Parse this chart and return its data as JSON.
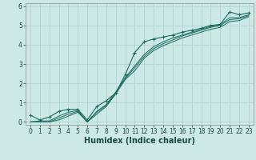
{
  "xlabel": "Humidex (Indice chaleur)",
  "ylabel": "",
  "xlim": [
    -0.5,
    23.5
  ],
  "ylim": [
    -0.15,
    6.15
  ],
  "xticks": [
    0,
    1,
    2,
    3,
    4,
    5,
    6,
    7,
    8,
    9,
    10,
    11,
    12,
    13,
    14,
    15,
    16,
    17,
    18,
    19,
    20,
    21,
    22,
    23
  ],
  "yticks": [
    0,
    1,
    2,
    3,
    4,
    5,
    6
  ],
  "bg_color": "#cce9e5",
  "grid_color": "#aacfcb",
  "line_color": "#1a6b5e",
  "line1_x": [
    0,
    1,
    2,
    3,
    4,
    5,
    6,
    7,
    8,
    9,
    10,
    11,
    12,
    13,
    14,
    15,
    16,
    17,
    18,
    19,
    20,
    21,
    22,
    23
  ],
  "line1_y": [
    0.35,
    0.1,
    0.25,
    0.55,
    0.65,
    0.65,
    0.1,
    0.8,
    1.1,
    1.5,
    2.45,
    3.6,
    4.15,
    4.3,
    4.4,
    4.5,
    4.65,
    4.75,
    4.85,
    5.0,
    5.05,
    5.7,
    5.55,
    5.65
  ],
  "line2_x": [
    0,
    1,
    2,
    3,
    4,
    5,
    6,
    7,
    8,
    9,
    10,
    11,
    12,
    13,
    14,
    15,
    16,
    17,
    18,
    19,
    20,
    21,
    22,
    23
  ],
  "line2_y": [
    0.0,
    0.05,
    0.05,
    0.3,
    0.5,
    0.6,
    0.0,
    0.55,
    0.9,
    1.55,
    2.3,
    2.9,
    3.5,
    3.9,
    4.15,
    4.35,
    4.5,
    4.65,
    4.8,
    4.95,
    5.05,
    5.4,
    5.4,
    5.55
  ],
  "line3_x": [
    0,
    1,
    2,
    3,
    4,
    5,
    6,
    7,
    8,
    9,
    10,
    11,
    12,
    13,
    14,
    15,
    16,
    17,
    18,
    19,
    20,
    21,
    22,
    23
  ],
  "line3_y": [
    0.0,
    0.0,
    0.0,
    0.2,
    0.4,
    0.55,
    0.0,
    0.5,
    0.85,
    1.5,
    2.25,
    2.8,
    3.4,
    3.8,
    4.05,
    4.25,
    4.45,
    4.6,
    4.75,
    4.9,
    5.0,
    5.3,
    5.35,
    5.5
  ],
  "line4_x": [
    0,
    1,
    2,
    3,
    4,
    5,
    6,
    7,
    8,
    9,
    10,
    11,
    12,
    13,
    14,
    15,
    16,
    17,
    18,
    19,
    20,
    21,
    22,
    23
  ],
  "line4_y": [
    0.0,
    0.0,
    0.0,
    0.1,
    0.3,
    0.5,
    0.0,
    0.4,
    0.8,
    1.45,
    2.2,
    2.65,
    3.3,
    3.7,
    3.95,
    4.15,
    4.35,
    4.5,
    4.65,
    4.8,
    4.9,
    5.2,
    5.25,
    5.45
  ],
  "font_color": "#1a4a40",
  "tick_fontsize": 5.5,
  "label_fontsize": 7.0
}
